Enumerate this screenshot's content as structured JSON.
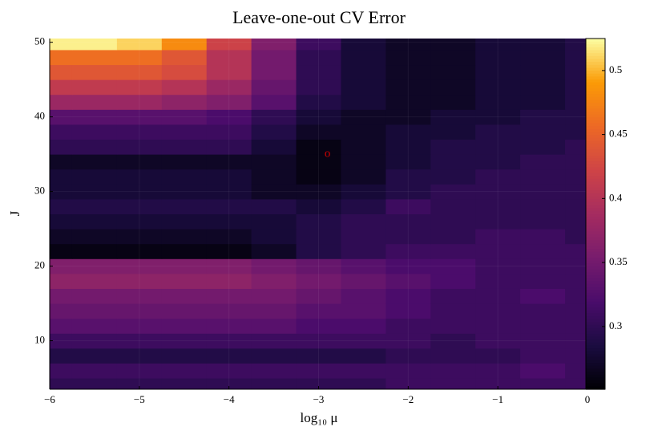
{
  "chart_data": {
    "type": "heatmap",
    "title": "Leave-one-out CV Error",
    "xlabel": "log₁₀ μ",
    "ylabel": "J",
    "colormap": "inferno",
    "grid": true,
    "x": [
      -6,
      -5.5,
      -5,
      -4.5,
      -4,
      -3.5,
      -3,
      -2.5,
      -2,
      -1.5,
      -1,
      -0.5,
      0
    ],
    "y": [
      4,
      6,
      8,
      10,
      12,
      14,
      16,
      18,
      20,
      22,
      24,
      26,
      28,
      30,
      32,
      34,
      36,
      38,
      40,
      42,
      44,
      46,
      48,
      50
    ],
    "z": [
      [
        0.3,
        0.3,
        0.3,
        0.3,
        0.3,
        0.3,
        0.3,
        0.3,
        0.31,
        0.31,
        0.31,
        0.31,
        0.31
      ],
      [
        0.31,
        0.31,
        0.31,
        0.31,
        0.31,
        0.31,
        0.31,
        0.31,
        0.31,
        0.31,
        0.31,
        0.32,
        0.31
      ],
      [
        0.29,
        0.29,
        0.29,
        0.29,
        0.29,
        0.29,
        0.29,
        0.29,
        0.3,
        0.3,
        0.3,
        0.31,
        0.31
      ],
      [
        0.31,
        0.31,
        0.31,
        0.31,
        0.31,
        0.31,
        0.31,
        0.31,
        0.31,
        0.3,
        0.31,
        0.31,
        0.31
      ],
      [
        0.33,
        0.33,
        0.33,
        0.33,
        0.33,
        0.33,
        0.32,
        0.32,
        0.31,
        0.31,
        0.31,
        0.31,
        0.31
      ],
      [
        0.34,
        0.34,
        0.34,
        0.34,
        0.34,
        0.34,
        0.33,
        0.33,
        0.32,
        0.31,
        0.31,
        0.31,
        0.31
      ],
      [
        0.35,
        0.35,
        0.35,
        0.35,
        0.35,
        0.35,
        0.34,
        0.33,
        0.32,
        0.31,
        0.31,
        0.32,
        0.31
      ],
      [
        0.37,
        0.37,
        0.37,
        0.37,
        0.37,
        0.36,
        0.35,
        0.34,
        0.33,
        0.32,
        0.31,
        0.31,
        0.31
      ],
      [
        0.36,
        0.36,
        0.36,
        0.36,
        0.36,
        0.35,
        0.34,
        0.33,
        0.32,
        0.32,
        0.31,
        0.31,
        0.31
      ],
      [
        0.26,
        0.26,
        0.26,
        0.26,
        0.26,
        0.27,
        0.29,
        0.3,
        0.31,
        0.31,
        0.31,
        0.31,
        0.31
      ],
      [
        0.27,
        0.27,
        0.27,
        0.27,
        0.27,
        0.28,
        0.29,
        0.3,
        0.3,
        0.3,
        0.31,
        0.31,
        0.3
      ],
      [
        0.28,
        0.28,
        0.28,
        0.28,
        0.28,
        0.28,
        0.29,
        0.3,
        0.3,
        0.3,
        0.3,
        0.3,
        0.3
      ],
      [
        0.29,
        0.29,
        0.29,
        0.29,
        0.29,
        0.29,
        0.28,
        0.29,
        0.31,
        0.3,
        0.3,
        0.3,
        0.3
      ],
      [
        0.28,
        0.28,
        0.28,
        0.28,
        0.28,
        0.27,
        0.27,
        0.28,
        0.29,
        0.3,
        0.3,
        0.3,
        0.3
      ],
      [
        0.28,
        0.28,
        0.28,
        0.28,
        0.28,
        0.27,
        0.26,
        0.27,
        0.29,
        0.29,
        0.3,
        0.3,
        0.3
      ],
      [
        0.27,
        0.27,
        0.27,
        0.27,
        0.27,
        0.27,
        0.26,
        0.27,
        0.28,
        0.29,
        0.29,
        0.3,
        0.3
      ],
      [
        0.3,
        0.3,
        0.3,
        0.3,
        0.3,
        0.28,
        0.26,
        0.27,
        0.28,
        0.29,
        0.29,
        0.29,
        0.3
      ],
      [
        0.31,
        0.31,
        0.31,
        0.31,
        0.31,
        0.29,
        0.27,
        0.27,
        0.28,
        0.28,
        0.29,
        0.29,
        0.29
      ],
      [
        0.33,
        0.33,
        0.33,
        0.33,
        0.32,
        0.3,
        0.28,
        0.27,
        0.27,
        0.28,
        0.28,
        0.29,
        0.29
      ],
      [
        0.38,
        0.38,
        0.38,
        0.37,
        0.36,
        0.33,
        0.29,
        0.28,
        0.27,
        0.27,
        0.28,
        0.28,
        0.29
      ],
      [
        0.41,
        0.41,
        0.41,
        0.4,
        0.38,
        0.34,
        0.3,
        0.28,
        0.27,
        0.27,
        0.28,
        0.28,
        0.29
      ],
      [
        0.44,
        0.44,
        0.44,
        0.43,
        0.4,
        0.35,
        0.3,
        0.28,
        0.27,
        0.27,
        0.28,
        0.28,
        0.29
      ],
      [
        0.46,
        0.46,
        0.46,
        0.44,
        0.4,
        0.35,
        0.3,
        0.28,
        0.27,
        0.27,
        0.28,
        0.28,
        0.29
      ],
      [
        0.52,
        0.52,
        0.51,
        0.48,
        0.42,
        0.36,
        0.31,
        0.28,
        0.27,
        0.27,
        0.28,
        0.28,
        0.29
      ]
    ],
    "xlim": [
      -6,
      0
    ],
    "xticks": [
      {
        "value": -6,
        "label": "−6"
      },
      {
        "value": -5,
        "label": "−5"
      },
      {
        "value": -4,
        "label": "−4"
      },
      {
        "value": -3,
        "label": "−3"
      },
      {
        "value": -2,
        "label": "−2"
      },
      {
        "value": -1,
        "label": "−1"
      },
      0
    ],
    "ylim": [
      3.5,
      50.5
    ],
    "yticks": [
      10,
      20,
      30,
      40,
      50
    ],
    "clim": [
      0.251,
      0.525
    ],
    "colorbar_ticks": [
      0.3,
      0.35,
      0.4,
      0.45,
      0.5
    ],
    "annotations": [
      {
        "text": "o",
        "x": -2.9,
        "y": 35,
        "color": "#cc0000"
      }
    ]
  }
}
